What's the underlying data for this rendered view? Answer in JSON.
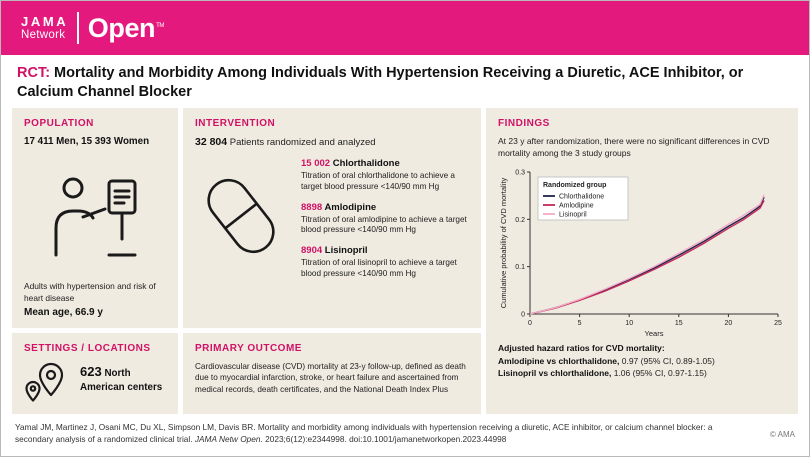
{
  "masthead": {
    "brand_jama": "JAMA",
    "brand_network": "Network",
    "brand_open": "Open",
    "brand_tm": "TM"
  },
  "title": {
    "tag": "RCT:",
    "text": " Mortality and Morbidity Among Individuals With Hypertension Receiving a Diuretic, ACE Inhibitor, or Calcium Channel Blocker"
  },
  "population": {
    "heading": "POPULATION",
    "counts": "17 411 Men, 15 393 Women",
    "description": "Adults with hypertension and risk of heart disease",
    "mean_age": "Mean age, 66.9 y"
  },
  "intervention": {
    "heading": "INTERVENTION",
    "total": "32 804",
    "total_label": "Patients randomized and analyzed",
    "arms": [
      {
        "n": "15 002",
        "name": "Chlorthalidone",
        "description": "Titration of oral chlorthalidone to achieve a target blood pressure <140/90 mm Hg"
      },
      {
        "n": "8898",
        "name": "Amlodipine",
        "description": "Titration of oral amlodipine to achieve a target blood pressure <140/90 mm Hg"
      },
      {
        "n": "8904",
        "name": "Lisinopril",
        "description": "Titration of oral lisinopril to achieve a target blood pressure <140/90 mm Hg"
      }
    ]
  },
  "findings": {
    "heading": "FINDINGS",
    "summary": "At 23 y after randomization, there were no significant differences in CVD mortality among the 3 study groups",
    "hazard_title": "Adjusted hazard ratios for CVD mortality:",
    "hazard_lines": [
      {
        "label": "Amlodipine vs chlorthalidone,",
        "value": " 0.97 (95% CI, 0.89-1.05)"
      },
      {
        "label": "Lisinopril vs chlorthalidone,",
        "value": " 1.06 (95% CI, 0.97-1.15)"
      }
    ]
  },
  "settings": {
    "heading": "SETTINGS / LOCATIONS",
    "count": "623",
    "label": "North American centers"
  },
  "outcome": {
    "heading": "PRIMARY OUTCOME",
    "text": "Cardiovascular disease (CVD) mortality at 23-y follow-up, defined as death due to myocardial infarction, stroke, or heart failure and ascertained from medical records, death certificates, and the National Death Index Plus"
  },
  "footer": {
    "citation_before_italic": "Yamal JM, Martinez J, Osani MC, Du XL, Simpson LM, Davis BR. Mortality and morbidity among individuals with hypertension receiving a diuretic, ACE inhibitor, or calcium channel blocker: a secondary analysis of a randomized clinical trial. ",
    "citation_italic": "JAMA Netw Open.",
    "citation_after": " 2023;6(12):e2344998. doi:10.1001/jamanetworkopen.2023.44998",
    "copyright": "© AMA"
  },
  "colors": {
    "brand_pink": "#e3197d",
    "accent_pink": "#d11166",
    "panel_beige": "#f0ebe1",
    "chlorthalidone": "#23234e",
    "amlodipine": "#c22a57",
    "lisinopril": "#f2abc7"
  },
  "chart_data": {
    "type": "line",
    "title": "",
    "xlabel": "Years",
    "ylabel": "Cumulative probability of CVD mortality",
    "xlim": [
      0,
      25
    ],
    "ylim": [
      0,
      0.3
    ],
    "xticks": [
      0,
      5,
      10,
      15,
      20,
      25
    ],
    "yticks": [
      0,
      0.1,
      0.2,
      0.3
    ],
    "ytick_labels": [
      "0",
      "0.1",
      "0.2",
      "0.3"
    ],
    "grid": false,
    "legend_title": "Randomized group",
    "legend_position": "top-left",
    "x": [
      0,
      2.5,
      5,
      7.5,
      10,
      12.5,
      15,
      17.5,
      20,
      21.5,
      22.8,
      23.2,
      23.6
    ],
    "series": [
      {
        "name": "Chlorthalidone",
        "color": "#23234e",
        "values": [
          0,
          0.013,
          0.03,
          0.05,
          0.073,
          0.097,
          0.124,
          0.153,
          0.185,
          0.203,
          0.222,
          0.228,
          0.247
        ]
      },
      {
        "name": "Amlodipine",
        "color": "#c22a57",
        "values": [
          0,
          0.012,
          0.029,
          0.048,
          0.07,
          0.094,
          0.12,
          0.149,
          0.181,
          0.199,
          0.218,
          0.224,
          0.24
        ]
      },
      {
        "name": "Lisinopril",
        "color": "#f2abc7",
        "values": [
          0,
          0.013,
          0.031,
          0.052,
          0.075,
          0.1,
          0.128,
          0.157,
          0.19,
          0.208,
          0.226,
          0.232,
          0.252
        ]
      }
    ]
  }
}
